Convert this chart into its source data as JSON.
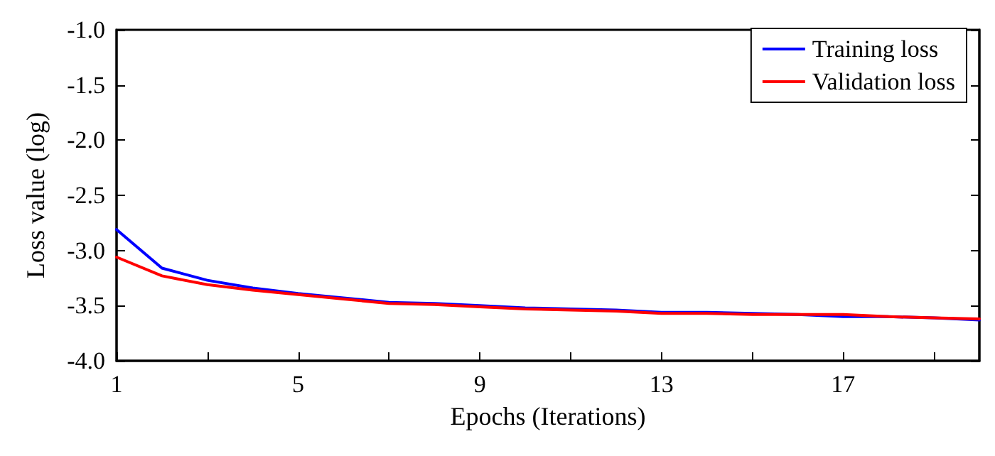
{
  "chart_data": {
    "type": "line",
    "xlabel": "Epochs (Iterations)",
    "ylabel": "Loss value (log)",
    "x": [
      1,
      2,
      3,
      4,
      5,
      6,
      7,
      8,
      9,
      10,
      11,
      12,
      13,
      14,
      15,
      16,
      17,
      18,
      19,
      20
    ],
    "series": [
      {
        "name": "Training loss",
        "color": "#0000ff",
        "values": [
          -2.81,
          -3.16,
          -3.27,
          -3.34,
          -3.39,
          -3.43,
          -3.47,
          -3.48,
          -3.5,
          -3.52,
          -3.53,
          -3.54,
          -3.56,
          -3.56,
          -3.57,
          -3.58,
          -3.6,
          -3.6,
          -3.61,
          -3.63
        ]
      },
      {
        "name": "Validation loss",
        "color": "#ff0000",
        "values": [
          -3.06,
          -3.23,
          -3.31,
          -3.36,
          -3.4,
          -3.44,
          -3.48,
          -3.49,
          -3.51,
          -3.53,
          -3.54,
          -3.55,
          -3.57,
          -3.57,
          -3.58,
          -3.58,
          -3.58,
          -3.6,
          -3.61,
          -3.62
        ]
      }
    ],
    "xlim": [
      1,
      20
    ],
    "xticks": [
      1,
      {
        "value": 3,
        "label": null
      },
      5,
      {
        "value": 7,
        "label": null
      },
      9,
      {
        "value": 11,
        "label": null
      },
      13,
      {
        "value": 15,
        "label": null
      },
      17,
      {
        "value": 19,
        "label": null
      }
    ],
    "ylim": [
      -4,
      -1
    ],
    "yticks": [
      {
        "value": -4,
        "label": "-4.0"
      },
      {
        "value": -3.5,
        "label": "-3.5"
      },
      {
        "value": -3,
        "label": "-3.0"
      },
      {
        "value": -2.5,
        "label": "-2.5"
      },
      {
        "value": -2,
        "label": "-2.0"
      },
      {
        "value": -1.5,
        "label": "-1.5"
      },
      {
        "value": -1,
        "label": "-1.0"
      }
    ],
    "legend": "top right",
    "grid": false,
    "marker": "none",
    "line_style": "solid"
  }
}
